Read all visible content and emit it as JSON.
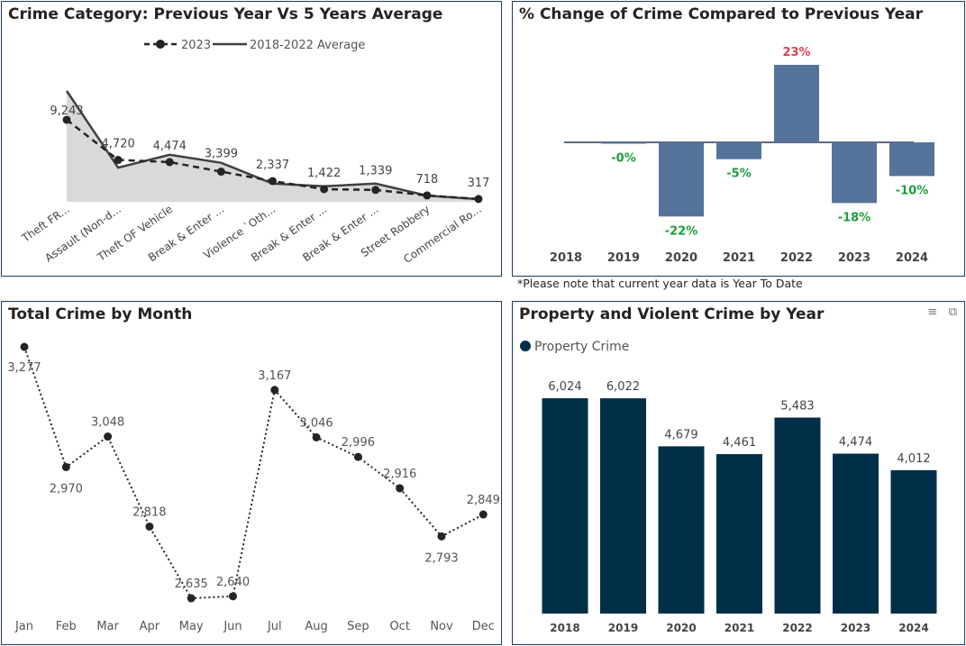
{
  "chart_data": [
    {
      "type": "line",
      "title": "Crime Category: Previous Year Vs 5 Years Average",
      "legend_position": "top",
      "categories": [
        "Theft FR...",
        "Assault (Non-d...",
        "Theft OF Vehicle",
        "Break & Enter ...",
        "Violence `Oth...",
        "Break & Enter ...",
        "Break & Enter ...",
        "Street Robbery",
        "Commercial Ro..."
      ],
      "series": [
        {
          "name": "2023",
          "style": "dashed-markers",
          "values": [
            9243,
            4720,
            4474,
            3399,
            2337,
            1422,
            1339,
            718,
            317
          ]
        },
        {
          "name": "2018-2022 Average",
          "style": "solid-area",
          "values": [
            12500,
            3850,
            5300,
            4400,
            2050,
            1750,
            2050,
            700,
            300
          ]
        }
      ],
      "color_line": "#404040",
      "color_area": "#d9d9db"
    },
    {
      "type": "bar",
      "title": "% Change of Crime Compared to Previous Year",
      "categories": [
        "2018",
        "2019",
        "2020",
        "2021",
        "2022",
        "2023",
        "2024"
      ],
      "values": [
        null,
        -0.1,
        -22,
        -5,
        23,
        -18,
        -10
      ],
      "labels": [
        "",
        "-0%",
        "-22%",
        "-5%",
        "23%",
        "-18%",
        "-10%"
      ],
      "bar_color": "#55739b",
      "positive_label_color": "#e04050",
      "negative_label_color": "#1a9e3a",
      "footnote": "*Please note that current year data is Year To Date"
    },
    {
      "type": "line",
      "title": "Total Crime by Month",
      "categories": [
        "Jan",
        "Feb",
        "Mar",
        "Apr",
        "May",
        "Jun",
        "Jul",
        "Aug",
        "Sep",
        "Oct",
        "Nov",
        "Dec"
      ],
      "values": [
        3277,
        2970,
        3048,
        2818,
        2635,
        2640,
        3167,
        3046,
        2996,
        2916,
        2793,
        2849
      ],
      "labels": [
        "3,277",
        "2,970",
        "3,048",
        "2,818",
        "2,635",
        "2,640",
        "3,167",
        "3,046",
        "2,996",
        "2,916",
        "2,793",
        "2,849"
      ],
      "style": "dotted-markers",
      "color": "#252423"
    },
    {
      "type": "bar",
      "title": "Property and Violent Crime by Year",
      "legend_position": "top-left",
      "series": [
        {
          "name": "Property Crime",
          "values": [
            6024,
            6022,
            4679,
            4461,
            5483,
            4474,
            4012
          ]
        }
      ],
      "categories": [
        "2018",
        "2019",
        "2020",
        "2021",
        "2022",
        "2023",
        "2024"
      ],
      "labels": [
        "6,024",
        "6,022",
        "4,679",
        "4,461",
        "5,483",
        "4,474",
        "4,012"
      ],
      "bar_color": "#002f47",
      "icons": [
        "filter-icon",
        "focus-mode-icon"
      ]
    }
  ]
}
